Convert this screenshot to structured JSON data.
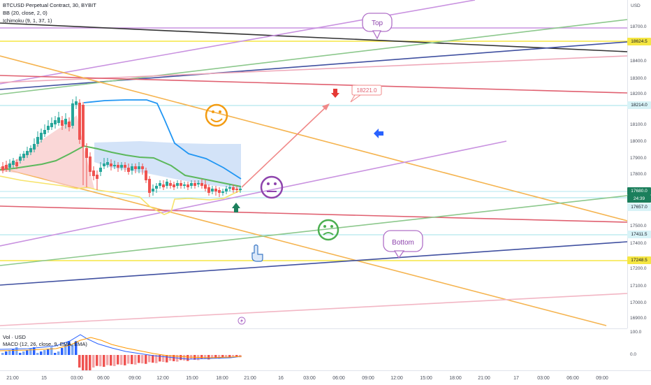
{
  "header": {
    "symbol": "BTCUSD Perpetual Contract, 30, BYBIT",
    "bb": "BB (20, close, 2, 0)",
    "ichimoku": "Ichimoku (9, 1, 37, 1)"
  },
  "subpanel": {
    "vol": "Vol · USD",
    "macd": "MACD (12, 26, close, 9, EMA, EMA)",
    "scale_top": "100.0",
    "scale_zero": "0.0"
  },
  "price_axis": {
    "currency": "USD",
    "labels": [
      "18700.0",
      "18500.0",
      "18400.0",
      "18300.0",
      "18200.0",
      "18100.0",
      "18000.0",
      "17900.0",
      "17800.0",
      "17700.0",
      "17600.0",
      "17500.0",
      "17400.0",
      "17300.0",
      "17200.0",
      "17100.0",
      "17000.0",
      "16900.0"
    ],
    "tags": {
      "t1": "18624.5",
      "t2": "18214.0",
      "current": "17680.0",
      "countdown": "24:39",
      "t3": "17657.0",
      "t4": "17411.5",
      "t5": "17248.5"
    }
  },
  "time_axis": {
    "labels": [
      "21:00",
      "15",
      "03:00",
      "06:00",
      "09:00",
      "12:00",
      "15:00",
      "18:00",
      "21:00",
      "16",
      "03:00",
      "06:00",
      "09:00",
      "12:00",
      "15:00",
      "18:00",
      "21:00",
      "17",
      "03:00",
      "06:00",
      "09:00"
    ]
  },
  "annotations": {
    "top": "Top",
    "bottom": "Bottom",
    "target": "18221.0"
  },
  "colors": {
    "up": "#26a69a",
    "down": "#ef5350",
    "bb": "#2196f3",
    "ichimoku_base": "#4caf50",
    "lagging": "#ffeb3b",
    "cloud_red": "#f8c6c6",
    "cloud_blue": "#c8dcf6"
  }
}
